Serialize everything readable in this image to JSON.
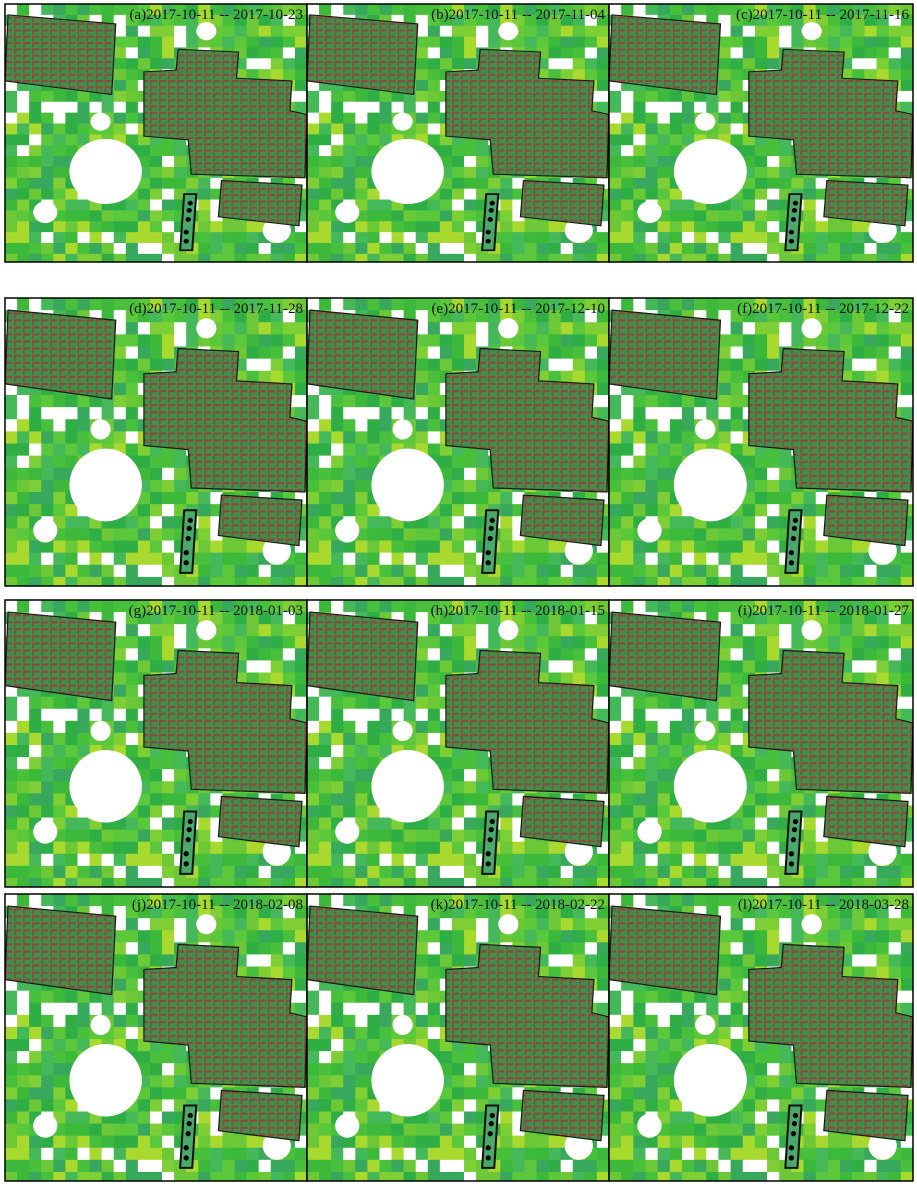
{
  "panels": [
    {
      "label": "(a)2017-10-11 -- 2017-10-23"
    },
    {
      "label": "(b)2017-10-11 -- 2017-11-04"
    },
    {
      "label": "(c)2017-10-11 -- 2017-11-16"
    },
    {
      "label": "(d)2017-10-11 -- 2017-11-28"
    },
    {
      "label": "(e)2017-10-11 -- 2017-12-10"
    },
    {
      "label": "(f)2017-10-11 -- 2017-12-22"
    },
    {
      "label": "(g)2017-10-11 -- 2018-01-03"
    },
    {
      "label": "(h)2017-10-11 -- 2018-01-15"
    },
    {
      "label": "(i)2017-10-11 -- 2018-01-27"
    },
    {
      "label": "(j)2017-10-11 -- 2018-02-08"
    },
    {
      "label": "(k)2017-10-11 -- 2018-02-22"
    },
    {
      "label": "(l)2017-10-11 -- 2018-03-28"
    }
  ]
}
